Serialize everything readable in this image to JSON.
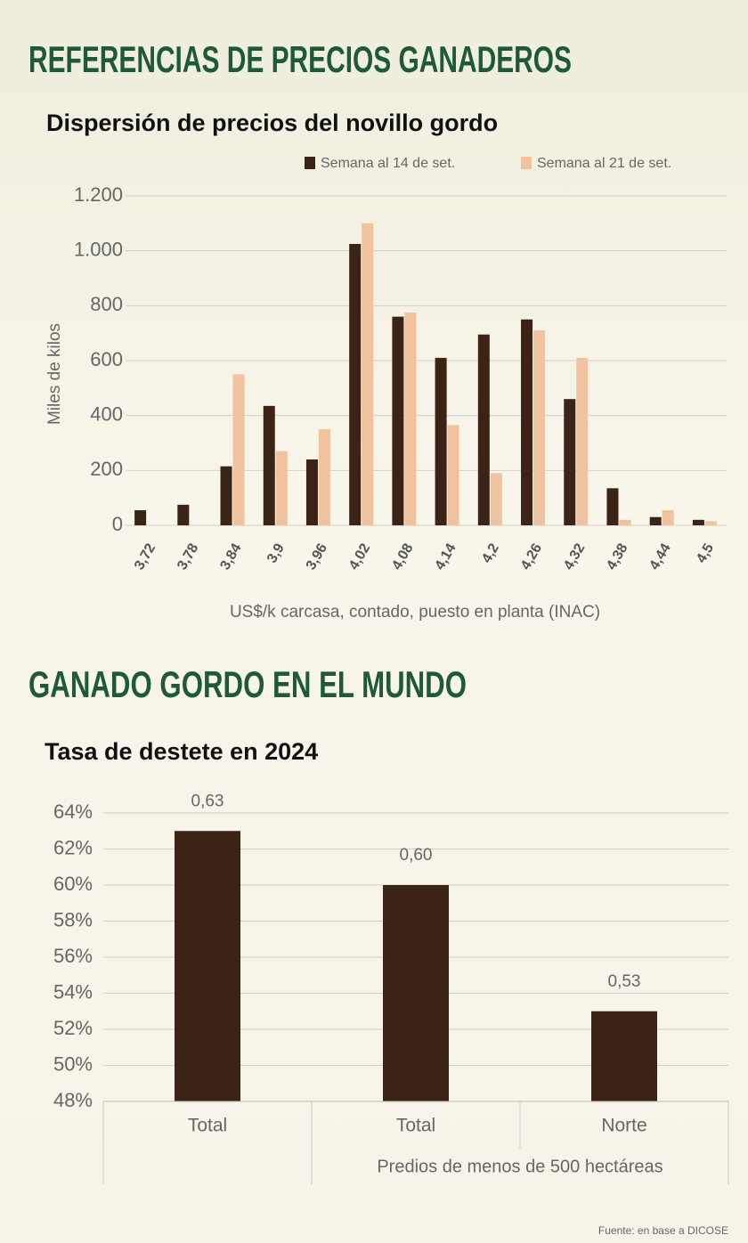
{
  "headings": [
    "REFERENCIAS DE PRECIOS GANADEROS",
    "GANADO GORDO EN EL MUNDO"
  ],
  "source": "Fuente: en base a DICOSE",
  "chart_data": [
    {
      "type": "bar",
      "title": "Dispersión de precios del novillo gordo",
      "x_label": "US$/k carcasa, contado, puesto en planta (INAC)",
      "y_label": "Miles de kilos",
      "categories": [
        "3,72",
        "3,78",
        "3,84",
        "3,9",
        "3,96",
        "4,02",
        "4,08",
        "4,14",
        "4,2",
        "4,26",
        "4,32",
        "4,38",
        "4,44",
        "4,5"
      ],
      "series": [
        {
          "name": "Semana al 14 de set.",
          "color": "#3b2316",
          "values": [
            55,
            75,
            215,
            435,
            240,
            1025,
            760,
            610,
            695,
            750,
            460,
            135,
            30,
            20
          ]
        },
        {
          "name": "Semana al 21 de set.",
          "color": "#f0c29e",
          "values": [
            null,
            null,
            550,
            270,
            350,
            1100,
            775,
            365,
            190,
            710,
            610,
            20,
            55,
            15
          ]
        }
      ],
      "ylim": [
        0,
        1200
      ],
      "yticks": [
        0,
        200,
        400,
        600,
        800,
        {
          "value": 1000,
          "label": "1.000"
        },
        {
          "value": 1200,
          "label": "1.200"
        }
      ],
      "grid": true
    },
    {
      "type": "bar",
      "title": "Tasa de destete en 2024",
      "categories": [
        "Total",
        "Total",
        "Norte"
      ],
      "group_label": "Predios de menos de 500 hectáreas",
      "values": [
        63,
        60,
        53
      ],
      "value_labels": [
        "0,63",
        "0,60",
        "0,53"
      ],
      "color": "#3b2316",
      "ylim": [
        48,
        64
      ],
      "yticks": [
        {
          "value": 48,
          "label": "48%"
        },
        {
          "value": 50,
          "label": "50%"
        },
        {
          "value": 52,
          "label": "52%"
        },
        {
          "value": 54,
          "label": "54%"
        },
        {
          "value": 56,
          "label": "56%"
        },
        {
          "value": 58,
          "label": "58%"
        },
        {
          "value": 60,
          "label": "60%"
        },
        {
          "value": 62,
          "label": "62%"
        },
        {
          "value": 64,
          "label": "64%"
        }
      ],
      "grid": true
    }
  ]
}
